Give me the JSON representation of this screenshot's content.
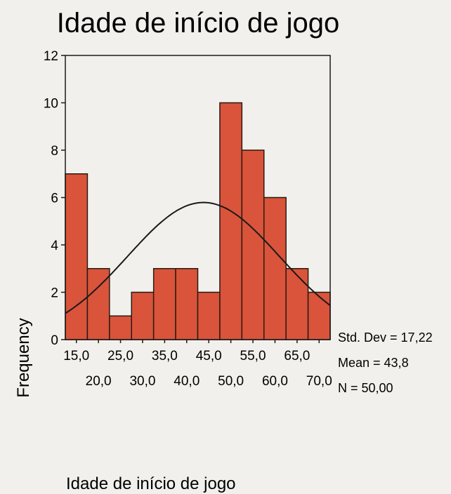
{
  "chart_data": {
    "type": "bar",
    "title": "Idade de início de jogo",
    "xlabel": "Idade de início de jogo",
    "ylabel": "Frequency",
    "ylim": [
      0,
      12
    ],
    "yticks": [
      "0",
      "2",
      "4",
      "6",
      "8",
      "10",
      "12"
    ],
    "xlim": [
      12.5,
      72.5
    ],
    "categories": [
      "15,0",
      "20,0",
      "25,0",
      "30,0",
      "35,0",
      "40,0",
      "45,0",
      "50,0",
      "55,0",
      "60,0",
      "65,0",
      "70,0"
    ],
    "x": [
      15,
      20,
      25,
      30,
      35,
      40,
      45,
      50,
      55,
      60,
      65,
      70
    ],
    "values": [
      7,
      3,
      1,
      2,
      3,
      3,
      2,
      10,
      8,
      6,
      3,
      2
    ],
    "normal_curve": {
      "mean": 43.8,
      "std": 17.22,
      "n": 50,
      "bin_width": 5
    },
    "stats": [
      "Std. Dev = 17,22",
      "Mean = 43,8",
      "N = 50,00"
    ],
    "colors": {
      "bar_fill": "#d9543a",
      "bar_stroke": "#2a1a12",
      "curve": "#1a1a1a",
      "background": "#f1f0ec"
    }
  }
}
